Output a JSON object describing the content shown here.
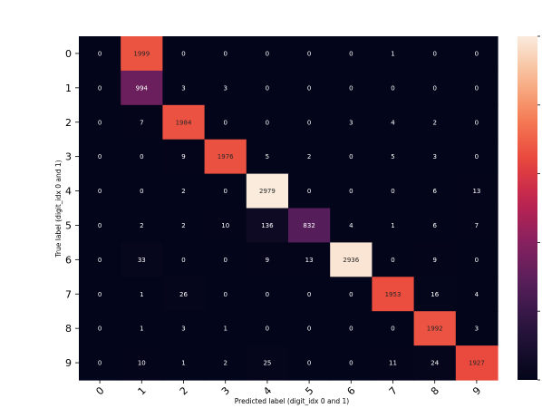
{
  "chart_data": {
    "type": "heatmap",
    "xlabel": "Predicted label (digit_idx 0 and 1)",
    "ylabel": "True label (digit_idx 0 and 1)",
    "x_categories": [
      "0",
      "1",
      "2",
      "3",
      "4",
      "5",
      "6",
      "7",
      "8",
      "9"
    ],
    "y_categories": [
      "0",
      "1",
      "2",
      "3",
      "4",
      "5",
      "6",
      "7",
      "8",
      "9"
    ],
    "values": [
      [
        0,
        1999,
        0,
        0,
        0,
        0,
        0,
        1,
        0,
        0
      ],
      [
        0,
        994,
        3,
        3,
        0,
        0,
        0,
        0,
        0,
        0
      ],
      [
        0,
        7,
        1984,
        0,
        0,
        0,
        3,
        4,
        2,
        0
      ],
      [
        0,
        0,
        9,
        1976,
        5,
        2,
        0,
        5,
        3,
        0
      ],
      [
        0,
        0,
        2,
        0,
        2979,
        0,
        0,
        0,
        6,
        13
      ],
      [
        0,
        2,
        2,
        10,
        136,
        832,
        4,
        1,
        6,
        7
      ],
      [
        0,
        33,
        0,
        0,
        9,
        13,
        2936,
        0,
        9,
        0
      ],
      [
        0,
        1,
        26,
        0,
        0,
        0,
        0,
        1953,
        16,
        4
      ],
      [
        0,
        1,
        3,
        1,
        0,
        0,
        0,
        0,
        1992,
        3
      ],
      [
        0,
        10,
        1,
        2,
        25,
        0,
        0,
        11,
        24,
        1927
      ]
    ],
    "value_range": [
      0,
      2979
    ],
    "colormap": "rocket",
    "colorbar": true,
    "grid": false
  }
}
